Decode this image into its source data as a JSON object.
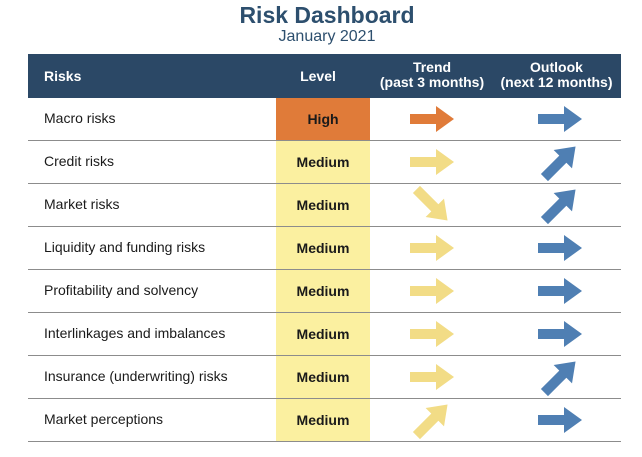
{
  "title": "Risk Dashboard",
  "subtitle": "January 2021",
  "header": {
    "risks": "Risks",
    "level": "Level",
    "trend_line1": "Trend",
    "trend_line2": "(past 3 months)",
    "outlook_line1": "Outlook",
    "outlook_line2": "(next 12 months)"
  },
  "colors": {
    "header_bg": "#2b4866",
    "high_bg": "#e07b39",
    "medium_bg": "#fbf0a0",
    "trend_high_arrow": "#e07b39",
    "trend_medium_arrow": "#f2dc86",
    "outlook_arrow": "#4f7fb3"
  },
  "rows": [
    {
      "label": "Macro risks",
      "level": "High",
      "trend": "right",
      "outlook": "right"
    },
    {
      "label": "Credit risks",
      "level": "Medium",
      "trend": "right",
      "outlook": "up-right"
    },
    {
      "label": "Market risks",
      "level": "Medium",
      "trend": "down-right",
      "outlook": "up-right"
    },
    {
      "label": "Liquidity and funding risks",
      "level": "Medium",
      "trend": "right",
      "outlook": "right"
    },
    {
      "label": "Profitability and solvency",
      "level": "Medium",
      "trend": "right",
      "outlook": "right"
    },
    {
      "label": "Interlinkages and imbalances",
      "level": "Medium",
      "trend": "right",
      "outlook": "right"
    },
    {
      "label": "Insurance (underwriting) risks",
      "level": "Medium",
      "trend": "right",
      "outlook": "up-right"
    },
    {
      "label": "Market perceptions",
      "level": "Medium",
      "trend": "up-right",
      "outlook": "right"
    }
  ]
}
